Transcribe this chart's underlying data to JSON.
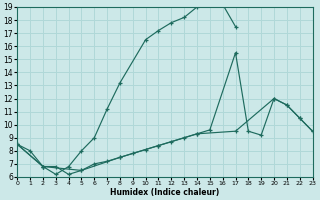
{
  "xlabel": "Humidex (Indice chaleur)",
  "bg_color": "#cce8e8",
  "grid_color": "#b0d8d8",
  "line_color": "#1e6b5e",
  "xlim": [
    0,
    23
  ],
  "ylim": [
    6,
    19
  ],
  "xticks": [
    0,
    1,
    2,
    3,
    4,
    5,
    6,
    7,
    8,
    9,
    10,
    11,
    12,
    13,
    14,
    15,
    16,
    17,
    18,
    19,
    20,
    21,
    22,
    23
  ],
  "yticks": [
    6,
    7,
    8,
    9,
    10,
    11,
    12,
    13,
    14,
    15,
    16,
    17,
    18,
    19
  ],
  "series1_x": [
    0,
    1,
    2,
    3,
    4,
    5,
    6,
    7,
    8,
    10,
    11,
    12,
    13,
    14,
    15,
    16,
    17
  ],
  "series1_y": [
    8.5,
    8.0,
    6.8,
    6.2,
    6.8,
    8.0,
    9.0,
    11.2,
    13.2,
    16.5,
    17.2,
    17.8,
    18.2,
    19.0,
    19.2,
    19.2,
    17.5
  ],
  "series2_x": [
    0,
    2,
    3,
    4,
    5,
    6,
    7,
    8,
    9,
    10,
    11,
    12,
    13,
    14,
    15,
    17,
    18,
    19,
    20,
    21,
    22,
    23
  ],
  "series2_y": [
    8.5,
    6.8,
    6.8,
    6.2,
    6.5,
    7.0,
    7.2,
    7.5,
    7.8,
    8.1,
    8.4,
    8.7,
    9.0,
    9.3,
    9.6,
    15.5,
    9.5,
    9.2,
    12.0,
    11.5,
    10.5,
    9.5
  ],
  "series3_x": [
    0,
    2,
    5,
    8,
    11,
    14,
    17,
    20,
    21,
    22,
    23
  ],
  "series3_y": [
    8.5,
    6.8,
    6.5,
    7.5,
    8.4,
    9.3,
    9.5,
    12.0,
    11.5,
    10.5,
    9.5
  ]
}
